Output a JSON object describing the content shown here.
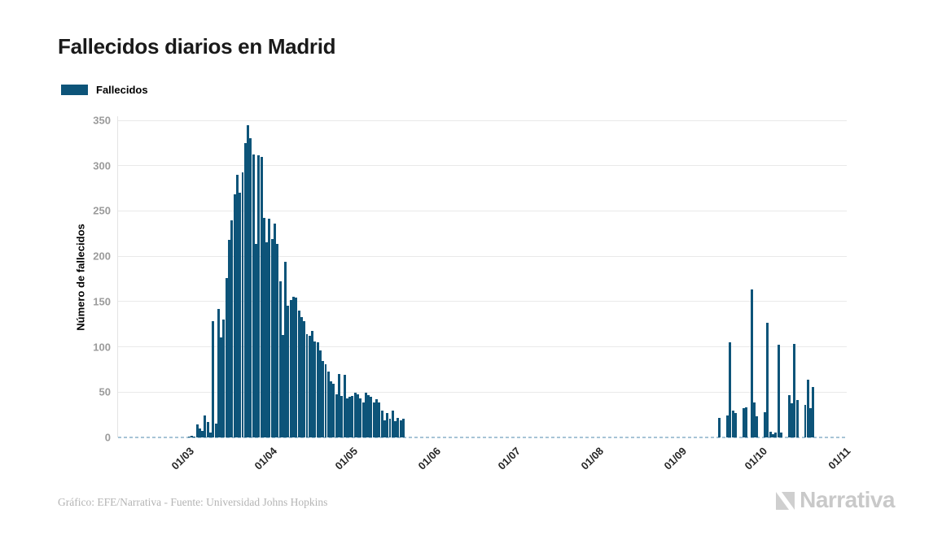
{
  "chart": {
    "title": "Fallecidos diarios en Madrid"
  },
  "legend": {
    "label": "Fallecidos"
  },
  "footer": {
    "credit": "Gráfico: EFE/Narrativa - Fuente: Universidad Johns Hopkins",
    "brand": "Narrativa"
  },
  "chart_data": {
    "type": "bar",
    "title": "Fallecidos diarios en Madrid",
    "xlabel": "",
    "ylabel": "Número de fallecidos",
    "ylim": [
      0,
      350
    ],
    "y_ticks": [
      0,
      50,
      100,
      150,
      200,
      250,
      300,
      350
    ],
    "grid": "horizontal",
    "legend_position": "top-left",
    "x_start": "2020-02-04",
    "x_end": "2020-11-02",
    "x_ticks": [
      {
        "date": "2020-03-01",
        "label": "01/03"
      },
      {
        "date": "2020-04-01",
        "label": "01/04"
      },
      {
        "date": "2020-05-01",
        "label": "01/05"
      },
      {
        "date": "2020-06-01",
        "label": "01/06"
      },
      {
        "date": "2020-07-01",
        "label": "01/07"
      },
      {
        "date": "2020-08-01",
        "label": "01/08"
      },
      {
        "date": "2020-09-01",
        "label": "01/09"
      },
      {
        "date": "2020-10-01",
        "label": "01/10"
      },
      {
        "date": "2020-11-01",
        "label": "01/11"
      }
    ],
    "series": [
      {
        "name": "Fallecidos",
        "color": "#0d5479",
        "data": [
          [
            "2020-03-01",
            1
          ],
          [
            "2020-03-02",
            2
          ],
          [
            "2020-03-03",
            1
          ],
          [
            "2020-03-04",
            14
          ],
          [
            "2020-03-05",
            10
          ],
          [
            "2020-03-06",
            7
          ],
          [
            "2020-03-07",
            24
          ],
          [
            "2020-03-08",
            17
          ],
          [
            "2020-03-09",
            5
          ],
          [
            "2020-03-10",
            128
          ],
          [
            "2020-03-11",
            15
          ],
          [
            "2020-03-12",
            142
          ],
          [
            "2020-03-13",
            110
          ],
          [
            "2020-03-14",
            130
          ],
          [
            "2020-03-15",
            176
          ],
          [
            "2020-03-16",
            218
          ],
          [
            "2020-03-17",
            240
          ],
          [
            "2020-03-18",
            268
          ],
          [
            "2020-03-19",
            290
          ],
          [
            "2020-03-20",
            270
          ],
          [
            "2020-03-21",
            293
          ],
          [
            "2020-03-22",
            325
          ],
          [
            "2020-03-23",
            345
          ],
          [
            "2020-03-24",
            330
          ],
          [
            "2020-03-25",
            312
          ],
          [
            "2020-03-26",
            214
          ],
          [
            "2020-03-27",
            311
          ],
          [
            "2020-03-28",
            310
          ],
          [
            "2020-03-29",
            242
          ],
          [
            "2020-03-30",
            215
          ],
          [
            "2020-03-31",
            241
          ],
          [
            "2020-04-01",
            219
          ],
          [
            "2020-04-02",
            236
          ],
          [
            "2020-04-03",
            214
          ],
          [
            "2020-04-04",
            172
          ],
          [
            "2020-04-05",
            113
          ],
          [
            "2020-04-06",
            194
          ],
          [
            "2020-04-07",
            145
          ],
          [
            "2020-04-08",
            152
          ],
          [
            "2020-04-09",
            155
          ],
          [
            "2020-04-10",
            154
          ],
          [
            "2020-04-11",
            140
          ],
          [
            "2020-04-12",
            133
          ],
          [
            "2020-04-13",
            128
          ],
          [
            "2020-04-14",
            114
          ],
          [
            "2020-04-15",
            112
          ],
          [
            "2020-04-16",
            118
          ],
          [
            "2020-04-17",
            106
          ],
          [
            "2020-04-18",
            105
          ],
          [
            "2020-04-19",
            96
          ],
          [
            "2020-04-20",
            84
          ],
          [
            "2020-04-21",
            81
          ],
          [
            "2020-04-22",
            73
          ],
          [
            "2020-04-23",
            62
          ],
          [
            "2020-04-24",
            59
          ],
          [
            "2020-04-25",
            48
          ],
          [
            "2020-04-26",
            70
          ],
          [
            "2020-04-27",
            46
          ],
          [
            "2020-04-28",
            69
          ],
          [
            "2020-04-29",
            43
          ],
          [
            "2020-04-30",
            45
          ],
          [
            "2020-05-01",
            46
          ],
          [
            "2020-05-02",
            49
          ],
          [
            "2020-05-03",
            48
          ],
          [
            "2020-05-04",
            43
          ],
          [
            "2020-05-05",
            39
          ],
          [
            "2020-05-06",
            49
          ],
          [
            "2020-05-07",
            47
          ],
          [
            "2020-05-08",
            45
          ],
          [
            "2020-05-09",
            39
          ],
          [
            "2020-05-10",
            42
          ],
          [
            "2020-05-11",
            39
          ],
          [
            "2020-05-12",
            30
          ],
          [
            "2020-05-13",
            19
          ],
          [
            "2020-05-14",
            27
          ],
          [
            "2020-05-15",
            21
          ],
          [
            "2020-05-16",
            30
          ],
          [
            "2020-05-17",
            18
          ],
          [
            "2020-05-18",
            22
          ],
          [
            "2020-05-19",
            19
          ],
          [
            "2020-05-20",
            21
          ],
          [
            "2020-09-15",
            22
          ],
          [
            "2020-09-18",
            24
          ],
          [
            "2020-09-19",
            105
          ],
          [
            "2020-09-20",
            30
          ],
          [
            "2020-09-21",
            27
          ],
          [
            "2020-09-24",
            32
          ],
          [
            "2020-09-25",
            33
          ],
          [
            "2020-09-27",
            163
          ],
          [
            "2020-09-28",
            39
          ],
          [
            "2020-09-29",
            23
          ],
          [
            "2020-10-02",
            28
          ],
          [
            "2020-10-03",
            127
          ],
          [
            "2020-10-04",
            6
          ],
          [
            "2020-10-05",
            4
          ],
          [
            "2020-10-06",
            5
          ],
          [
            "2020-10-07",
            102
          ],
          [
            "2020-10-08",
            5
          ],
          [
            "2020-10-11",
            47
          ],
          [
            "2020-10-12",
            38
          ],
          [
            "2020-10-13",
            103
          ],
          [
            "2020-10-14",
            41
          ],
          [
            "2020-10-17",
            36
          ],
          [
            "2020-10-18",
            64
          ],
          [
            "2020-10-19",
            32
          ],
          [
            "2020-10-20",
            56
          ]
        ]
      }
    ]
  }
}
